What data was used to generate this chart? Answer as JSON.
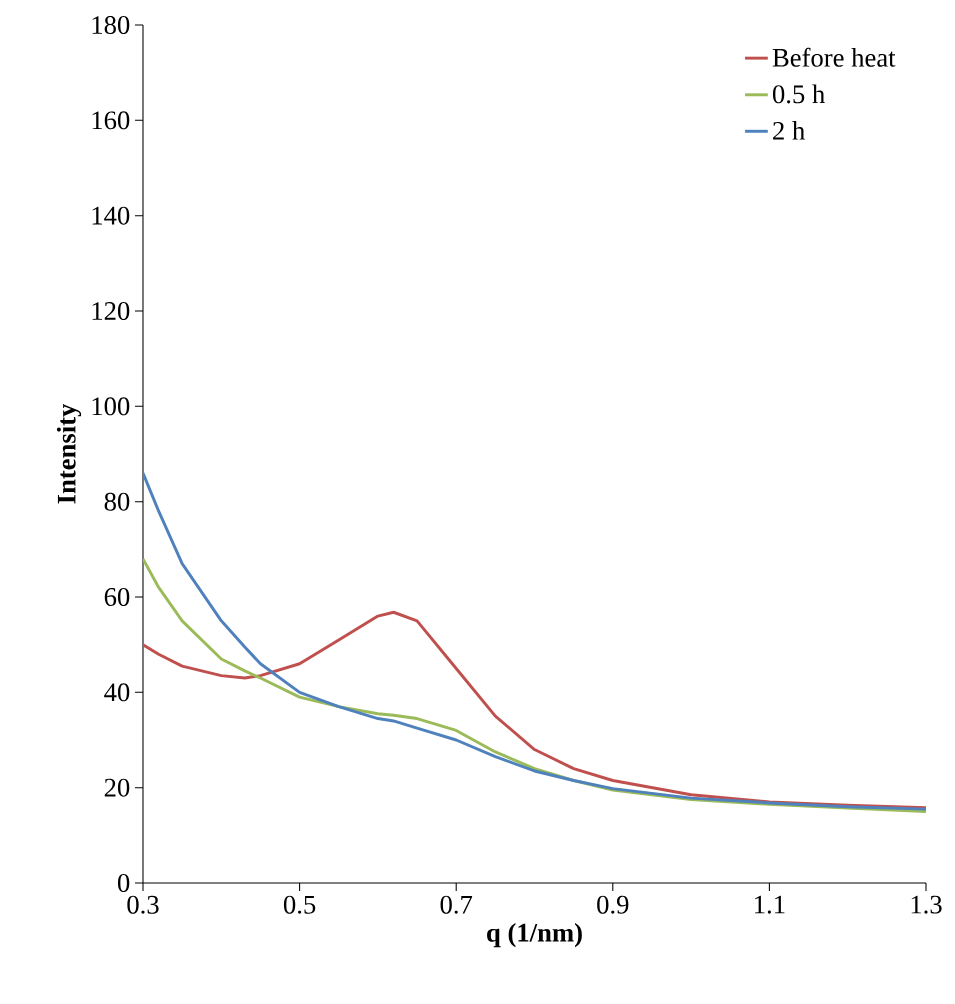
{
  "chart_data": {
    "type": "line",
    "xlabel": "q (1/nm)",
    "ylabel": "Intensity",
    "xlim": [
      0.3,
      1.3
    ],
    "xticks": [
      0.3,
      0.5,
      0.7,
      0.9,
      1.1,
      1.3
    ],
    "ylim": [
      0,
      180
    ],
    "yticks": [
      0,
      20,
      40,
      60,
      80,
      100,
      120,
      140,
      160,
      180
    ],
    "grid": false,
    "legend": "top right",
    "marker": "none",
    "line_style": "solid",
    "x": [
      0.3,
      0.32,
      0.35,
      0.4,
      0.43,
      0.45,
      0.5,
      0.55,
      0.6,
      0.62,
      0.65,
      0.7,
      0.75,
      0.8,
      0.85,
      0.9,
      1.0,
      1.1,
      1.2,
      1.3
    ],
    "series": [
      {
        "name": "Before heat",
        "color": "#c0504d",
        "values": [
          50,
          48,
          45.5,
          43.5,
          43,
          43.5,
          46,
          51,
          56,
          56.8,
          55,
          45,
          35,
          28,
          24,
          21.5,
          18.5,
          17,
          16.3,
          15.8
        ]
      },
      {
        "name": "0.5 h",
        "color": "#9bbb59",
        "values": [
          68,
          62,
          55,
          47,
          44.5,
          43,
          39,
          37,
          35.5,
          35.2,
          34.5,
          32,
          27.5,
          24,
          21.5,
          19.5,
          17.5,
          16.5,
          15.7,
          15
        ]
      },
      {
        "name": "2 h",
        "color": "#4f81bd",
        "values": [
          86,
          78,
          67,
          55,
          49.5,
          46,
          40,
          37,
          34.5,
          34,
          32.5,
          30,
          26.5,
          23.5,
          21.5,
          19.8,
          17.8,
          16.8,
          16,
          15.5
        ]
      }
    ]
  }
}
